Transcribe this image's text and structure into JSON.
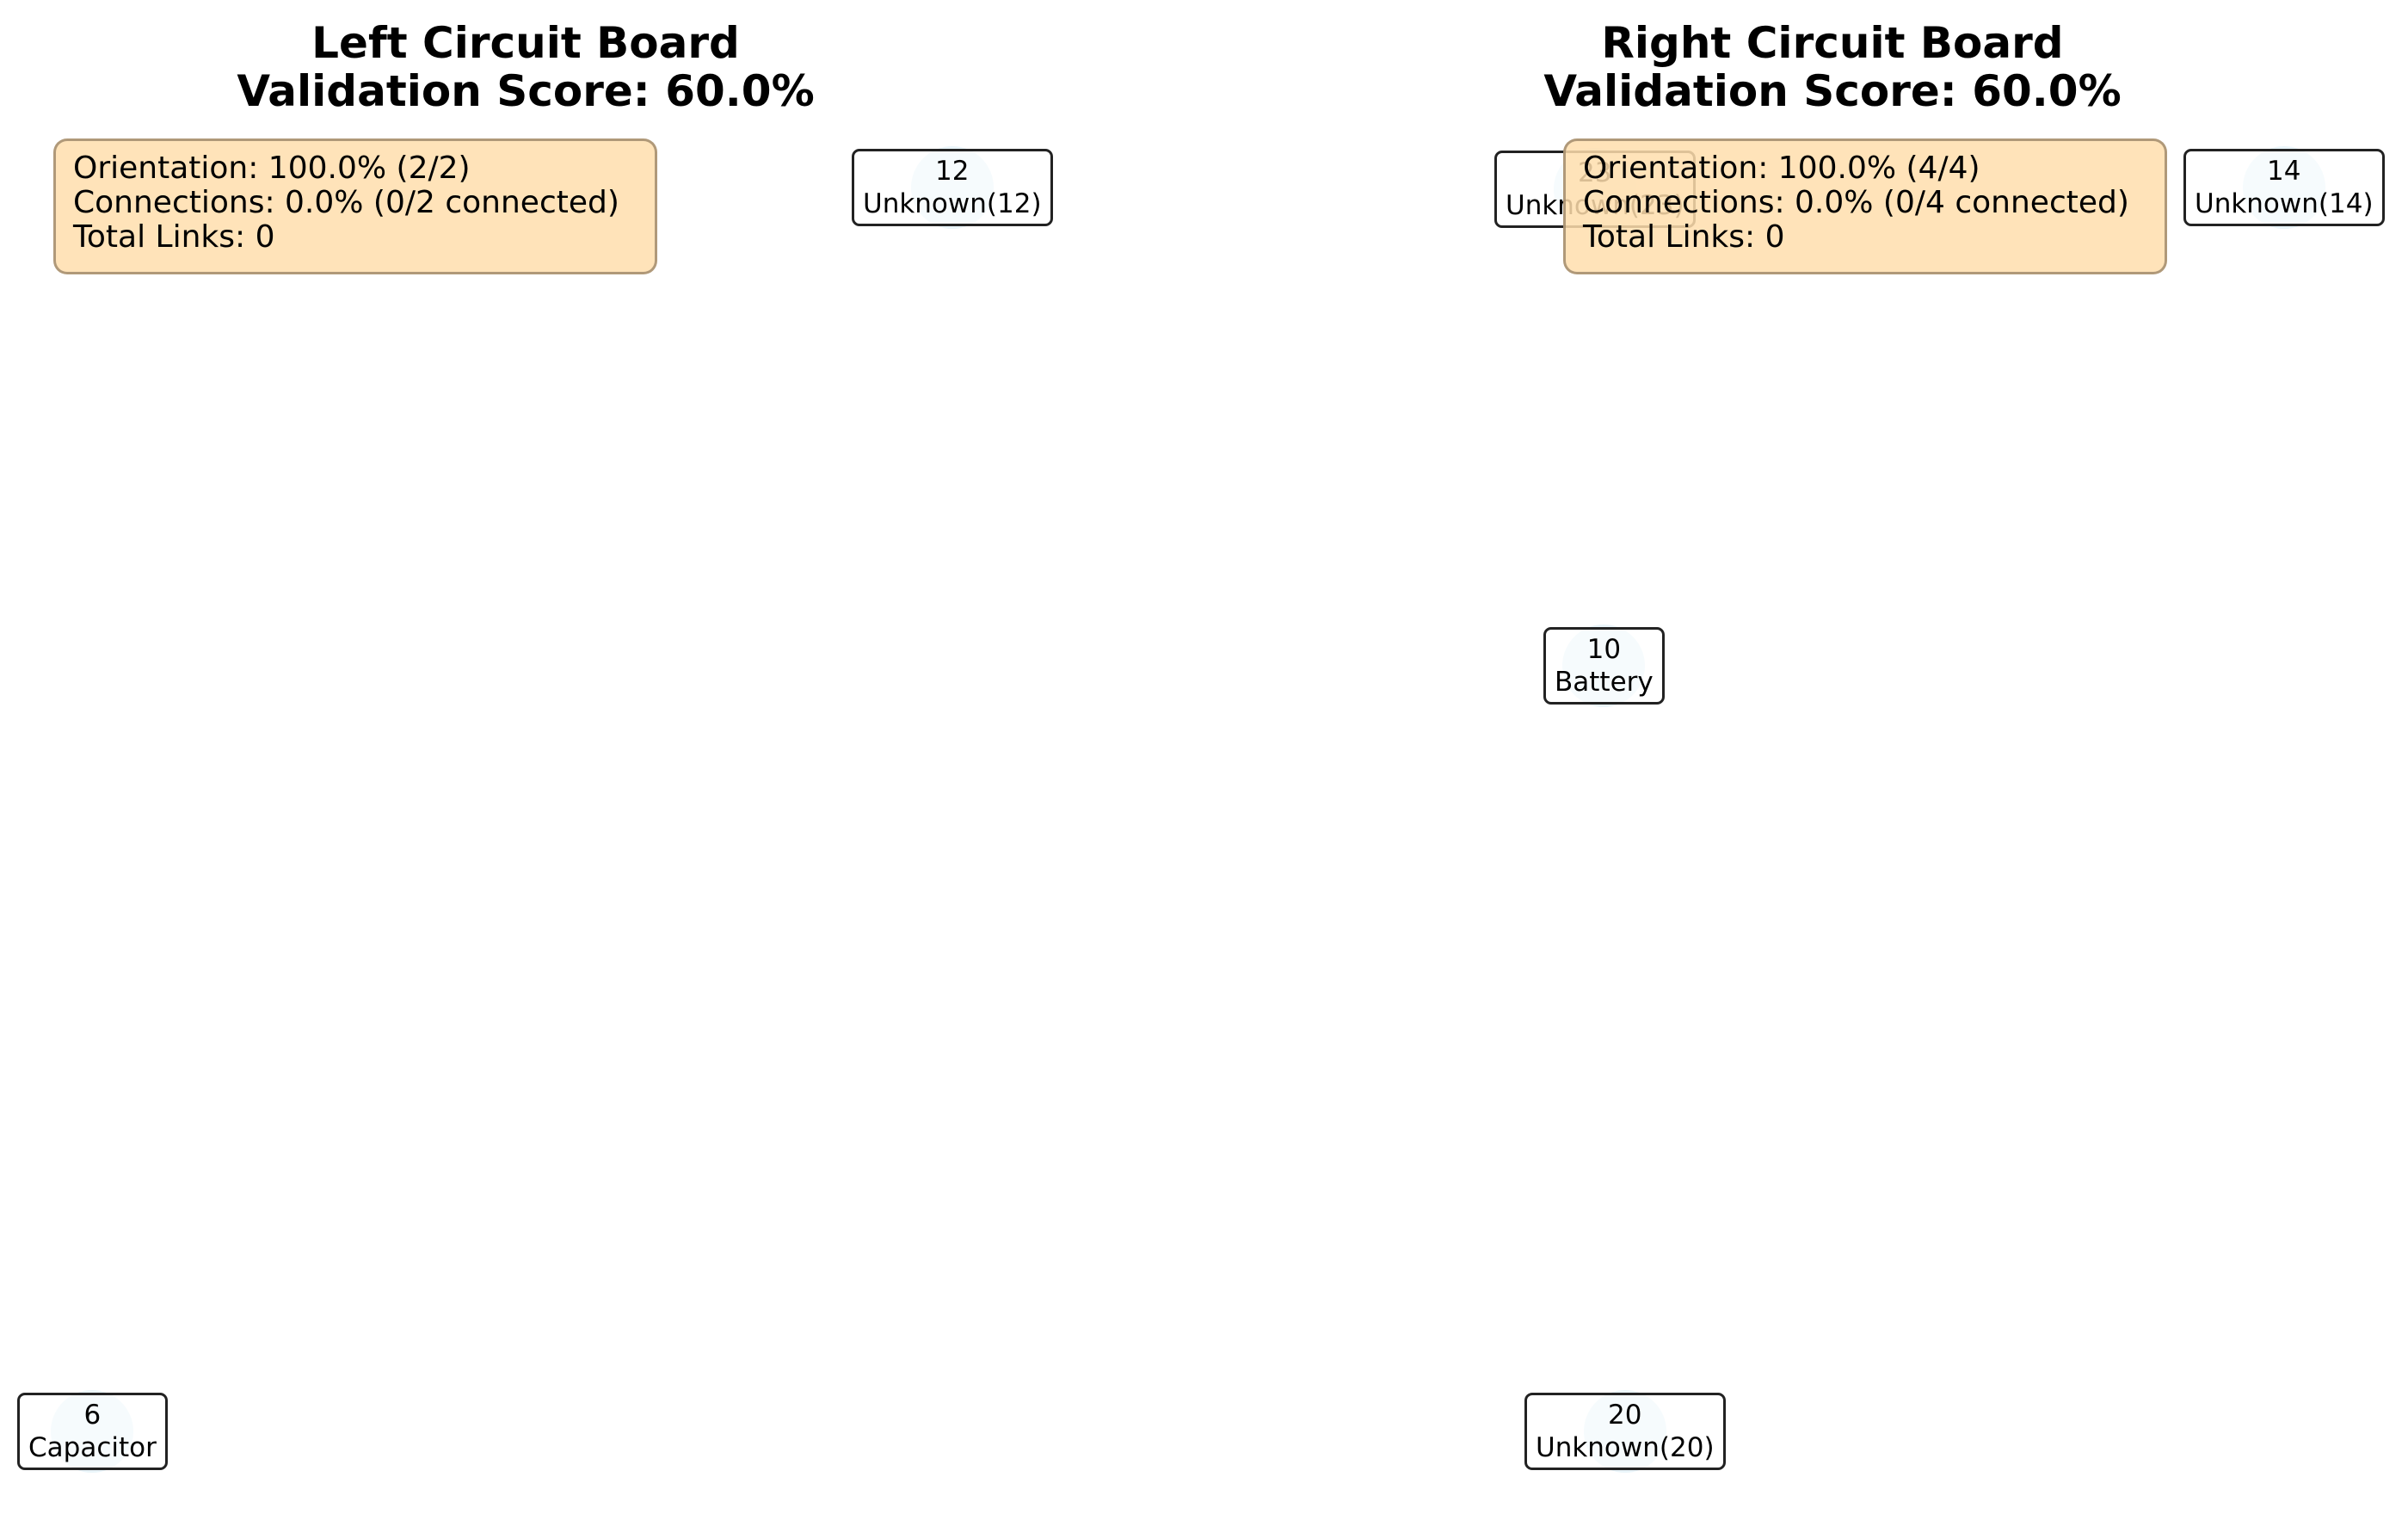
{
  "boards": {
    "left": {
      "title": "Left Circuit Board",
      "score": "Validation Score: 60.0%",
      "stats": {
        "orientation": "Orientation: 100.0% (2/2)",
        "connections": "Connections: 0.0% (0/2 connected)",
        "links": "Total Links: 0"
      },
      "nodes": [
        {
          "id": "12",
          "type": "Unknown(12)"
        },
        {
          "id": "6",
          "type": "Capacitor"
        }
      ]
    },
    "right": {
      "title": "Right Circuit Board",
      "score": "Validation Score: 60.0%",
      "stats": {
        "orientation": "Orientation: 100.0% (4/4)",
        "connections": "Connections: 0.0% (0/4 connected)",
        "links": "Total Links: 0"
      },
      "nodes": [
        {
          "id": "23",
          "type": "Unknown(23)"
        },
        {
          "id": "14",
          "type": "Unknown(14)"
        },
        {
          "id": "10",
          "type": "Battery"
        },
        {
          "id": "20",
          "type": "Unknown(20)"
        }
      ]
    }
  },
  "colors": {
    "node_fill": "#eaf5fa",
    "stats_fill": "#ffdead",
    "border": "#222222"
  }
}
